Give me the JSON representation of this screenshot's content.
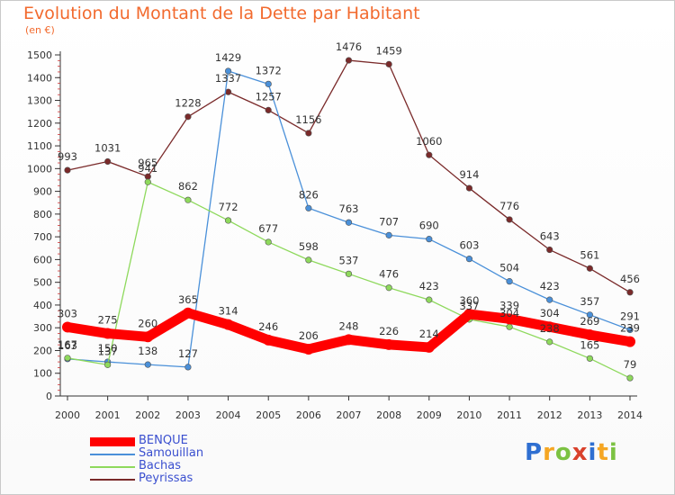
{
  "title": "Evolution du Montant de la Dette par Habitant",
  "unit": "(en €)",
  "logo": {
    "text": "Proxiti",
    "colors": [
      "#2f6fd1",
      "#f5a623",
      "#7cc242",
      "#d9412b",
      "#2f6fd1",
      "#f5a623",
      "#7cc242"
    ]
  },
  "chart_data": {
    "type": "line",
    "title": "Evolution du Montant de la Dette par Habitant",
    "ylabel": "(en €)",
    "categories": [
      "2000",
      "2001",
      "2002",
      "2003",
      "2004",
      "2005",
      "2006",
      "2007",
      "2008",
      "2009",
      "2010",
      "2011",
      "2012",
      "2013",
      "2014"
    ],
    "ylim": [
      0,
      1500
    ],
    "yticks": [
      0,
      100,
      200,
      300,
      400,
      500,
      600,
      700,
      800,
      900,
      1000,
      1100,
      1200,
      1300,
      1400,
      1500
    ],
    "grid": false,
    "legend_position": "bottom-left",
    "series": [
      {
        "name": "BENQUE",
        "color": "#ff0000",
        "values": [
          303,
          275,
          260,
          365,
          314,
          246,
          206,
          248,
          226,
          214,
          360,
          339,
          304,
          269,
          239
        ]
      },
      {
        "name": "Samouillan",
        "color": "#4a90d9",
        "values": [
          163,
          150,
          138,
          127,
          1429,
          1372,
          826,
          763,
          707,
          690,
          603,
          504,
          423,
          357,
          291
        ]
      },
      {
        "name": "Bachas",
        "color": "#8ed95c",
        "values": [
          167,
          137,
          941,
          862,
          772,
          677,
          598,
          537,
          476,
          423,
          337,
          304,
          238,
          165,
          79
        ]
      },
      {
        "name": "Peyrissas",
        "color": "#7a2a2a",
        "values": [
          993,
          1031,
          965,
          1228,
          1337,
          1257,
          1156,
          1476,
          1459,
          1060,
          914,
          776,
          643,
          561,
          456
        ]
      }
    ]
  }
}
